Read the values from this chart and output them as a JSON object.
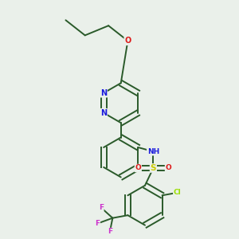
{
  "background_color": "#eaf0ea",
  "bond_color": "#2a5a2a",
  "atom_colors": {
    "N": "#1a1add",
    "O": "#dd1a1a",
    "S": "#cccc00",
    "Cl": "#99dd00",
    "F": "#cc33cc",
    "C": "#2a5a2a"
  },
  "figsize": [
    3.0,
    3.0
  ],
  "dpi": 100
}
